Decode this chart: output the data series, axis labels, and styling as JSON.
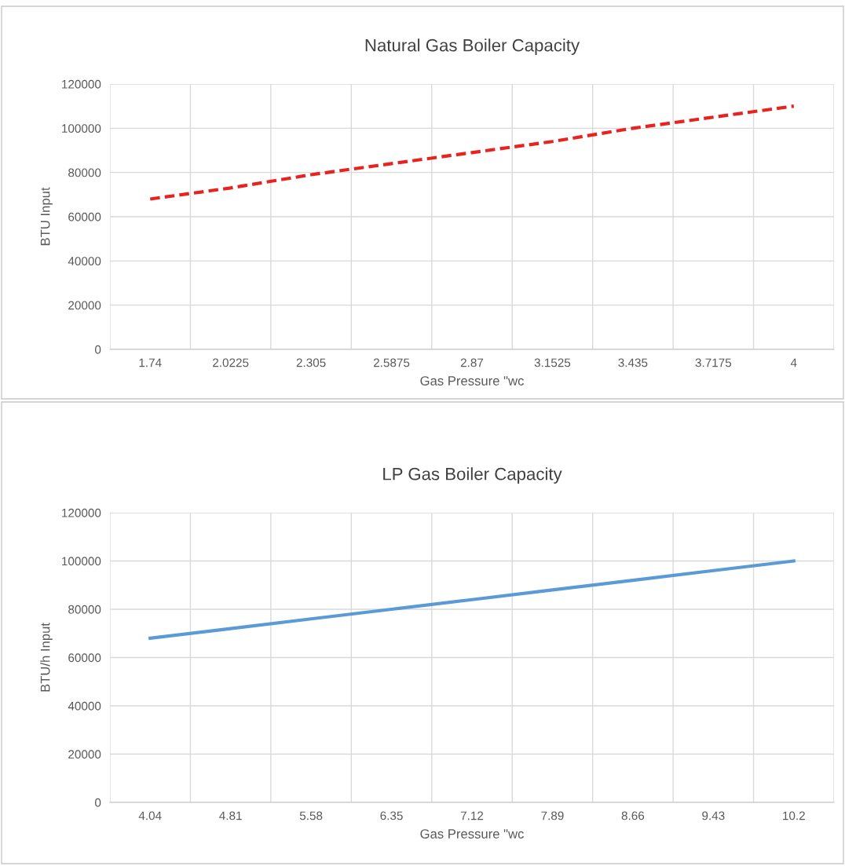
{
  "chart_data": [
    {
      "type": "line",
      "title": "Natural Gas Boiler Capacity",
      "xlabel": "Gas Pressure \"wc",
      "ylabel": "BTU Input",
      "categories": [
        "1.74",
        "2.0225",
        "2.305",
        "2.5875",
        "2.87",
        "3.1525",
        "3.435",
        "3.7175",
        "4"
      ],
      "series": [
        {
          "color": "#e8231f",
          "line_style": "dashed",
          "values": [
            68000,
            73000,
            79000,
            84000,
            89000,
            94000,
            100000,
            105000,
            110000
          ]
        }
      ],
      "ylim": [
        0,
        120000
      ],
      "yticks": [
        0,
        20000,
        40000,
        60000,
        80000,
        100000,
        120000
      ],
      "grid": true,
      "legend": false
    },
    {
      "type": "line",
      "title": "LP Gas Boiler Capacity",
      "xlabel": "Gas Pressure \"wc",
      "ylabel": "BTU/h Input",
      "categories": [
        "4.04",
        "4.81",
        "5.58",
        "6.35",
        "7.12",
        "7.89",
        "8.66",
        "9.43",
        "10.2"
      ],
      "series": [
        {
          "color": "#5b9bd5",
          "line_style": "solid",
          "values": [
            68000,
            72000,
            76000,
            80000,
            84000,
            88000,
            92000,
            96000,
            100000
          ]
        }
      ],
      "ylim": [
        0,
        120000
      ],
      "yticks": [
        0,
        20000,
        40000,
        60000,
        80000,
        100000,
        120000
      ],
      "grid": true,
      "legend": false
    }
  ]
}
